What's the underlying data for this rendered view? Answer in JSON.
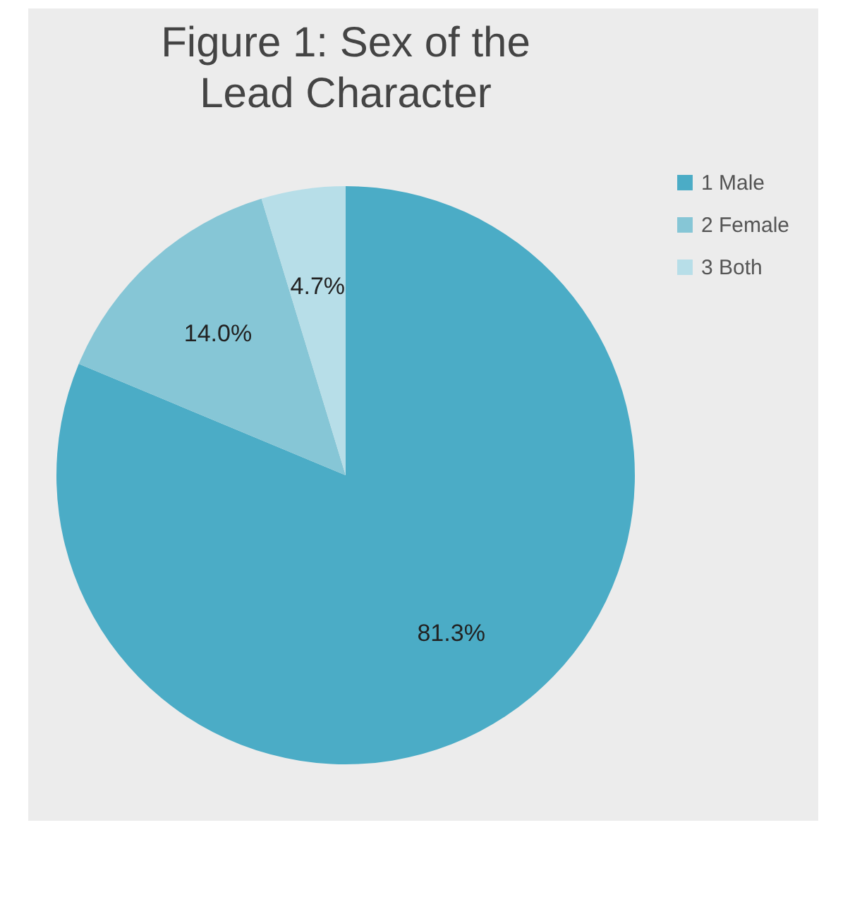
{
  "chart_data": {
    "type": "pie",
    "title": "Figure 1: Sex of the Lead Character",
    "categories": [
      "1 Male",
      "2 Female",
      "3 Both"
    ],
    "values": [
      81.3,
      14.0,
      4.7
    ],
    "colors": [
      "#4bacc6",
      "#86c6d6",
      "#b7dee8"
    ],
    "value_labels": [
      "81.3%",
      "14.0%",
      "4.7%"
    ],
    "legend": "right"
  }
}
